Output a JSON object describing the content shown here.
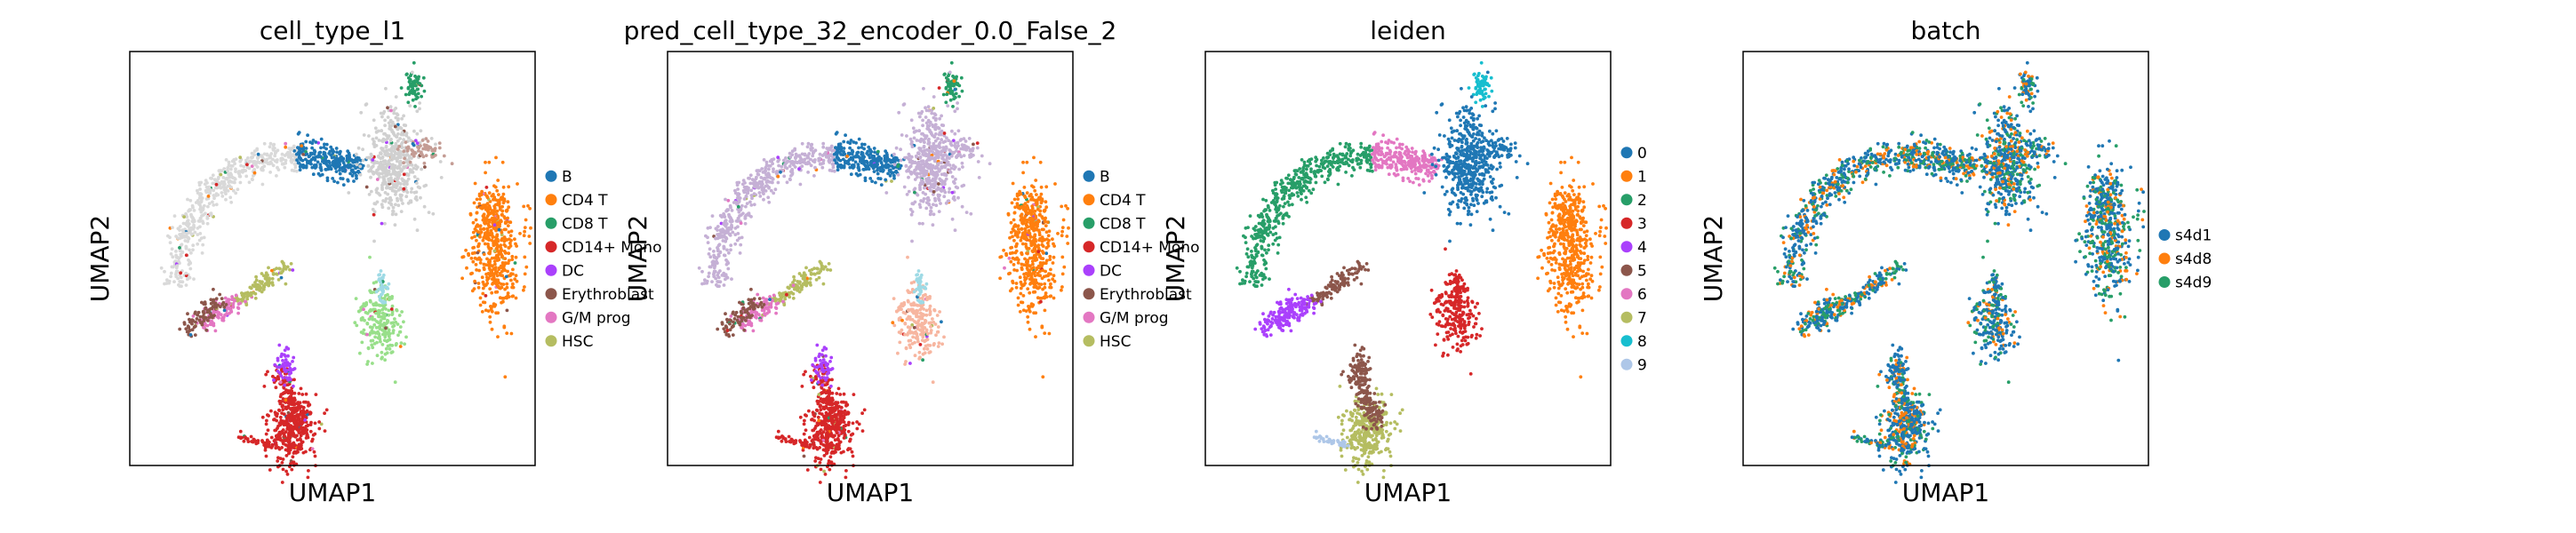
{
  "chart_data": [
    {
      "type": "scatter",
      "title": "cell_type_l1",
      "xlabel": "UMAP1",
      "ylabel": "UMAP2",
      "ticks": "none",
      "legend_position": "right",
      "legend": [
        {
          "label": "B",
          "color": "#1f77b4"
        },
        {
          "label": "CD4 T",
          "color": "#ff7f0e"
        },
        {
          "label": "CD8 T",
          "color": "#279e68"
        },
        {
          "label": "CD14+ Mono",
          "color": "#d62728"
        },
        {
          "label": "DC",
          "color": "#aa40fc"
        },
        {
          "label": "Erythroblast",
          "color": "#8c564b"
        },
        {
          "label": "G/M prog",
          "color": "#e377c2"
        },
        {
          "label": "HSC",
          "color": "#b5bd61"
        }
      ]
    },
    {
      "type": "scatter",
      "title": "pred_cell_type_32_encoder_0.0_False_2",
      "xlabel": "UMAP1",
      "ylabel": "UMAP2",
      "ticks": "none",
      "legend_position": "right",
      "legend": [
        {
          "label": "B",
          "color": "#1f77b4"
        },
        {
          "label": "CD4 T",
          "color": "#ff7f0e"
        },
        {
          "label": "CD8 T",
          "color": "#279e68"
        },
        {
          "label": "CD14+ Mono",
          "color": "#d62728"
        },
        {
          "label": "DC",
          "color": "#aa40fc"
        },
        {
          "label": "Erythroblast",
          "color": "#8c564b"
        },
        {
          "label": "G/M prog",
          "color": "#e377c2"
        },
        {
          "label": "HSC",
          "color": "#b5bd61"
        }
      ]
    },
    {
      "type": "scatter",
      "title": "leiden",
      "xlabel": "UMAP1",
      "ylabel": "UMAP2",
      "ticks": "none",
      "legend_position": "right",
      "legend": [
        {
          "label": "0",
          "color": "#1f77b4"
        },
        {
          "label": "1",
          "color": "#ff7f0e"
        },
        {
          "label": "2",
          "color": "#279e68"
        },
        {
          "label": "3",
          "color": "#d62728"
        },
        {
          "label": "4",
          "color": "#aa40fc"
        },
        {
          "label": "5",
          "color": "#8c564b"
        },
        {
          "label": "6",
          "color": "#e377c2"
        },
        {
          "label": "7",
          "color": "#b5bd61"
        },
        {
          "label": "8",
          "color": "#17becf"
        },
        {
          "label": "9",
          "color": "#aec7e8"
        }
      ]
    },
    {
      "type": "scatter",
      "title": "batch",
      "xlabel": "UMAP1",
      "ylabel": "UMAP2",
      "ticks": "none",
      "legend_position": "right",
      "legend": [
        {
          "label": "s4d1",
          "color": "#1f77b4"
        },
        {
          "label": "s4d8",
          "color": "#ff7f0e"
        },
        {
          "label": "s4d9",
          "color": "#279e68"
        }
      ]
    }
  ]
}
